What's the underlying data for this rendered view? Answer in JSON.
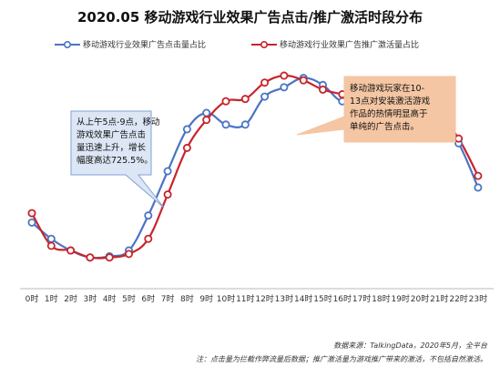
{
  "chart_data": {
    "type": "line",
    "title": "2020.05  移动游戏行业效果广告点击/推广激活时段分布",
    "categories": [
      "0时",
      "1时",
      "2时",
      "3时",
      "4时",
      "5时",
      "6时",
      "7时",
      "8时",
      "9时",
      "10时",
      "11时",
      "12时",
      "13时",
      "14时",
      "15时",
      "16时",
      "17时",
      "18时",
      "19时",
      "20时",
      "21时",
      "22时",
      "23时"
    ],
    "series": [
      {
        "name": "移动游戏行业效果广告点击量占比",
        "color": "#4a74c4",
        "values": [
          2.8,
          2.1,
          1.6,
          1.3,
          1.35,
          1.6,
          3.1,
          5.0,
          6.8,
          7.5,
          7.0,
          7.0,
          8.2,
          8.6,
          9.0,
          8.7,
          8.0,
          8.4,
          7.6,
          7.5,
          7.4,
          7.3,
          6.2,
          4.3
        ]
      },
      {
        "name": "移动游戏行业效果广告推广激活量占比",
        "color": "#c8242b",
        "values": [
          3.2,
          1.8,
          1.6,
          1.3,
          1.3,
          1.45,
          2.1,
          4.0,
          6.0,
          7.2,
          8.0,
          8.1,
          8.8,
          9.1,
          8.9,
          8.5,
          8.3,
          8.1,
          7.3,
          7.3,
          7.5,
          7.4,
          6.4,
          4.8
        ]
      }
    ],
    "ylim": [
      0,
      10
    ],
    "grid": false,
    "legend": "top",
    "annotations": [
      {
        "text": "从上午5点-9点，移动游戏效果广告点击量迅速上升，增长幅度高达725.5%。",
        "lines": [
          "从上午5点-9点，移动",
          "游戏效果广告点击",
          "量迅速上升，增长",
          "幅度高达725.5%。"
        ],
        "fill": "#dde6f5",
        "border": "#7ea0d8"
      },
      {
        "text": "移动游戏玩家在10-13点对安装激活游戏作品的热情明显高于单纯的广告点击。",
        "lines": [
          "移动游戏玩家在10-",
          "13点对安装激活游戏",
          "作品的热情明显高于",
          "单纯的广告点击。"
        ],
        "fill": "#f4c6a3",
        "border": "#f4c6a3"
      }
    ]
  },
  "footer": {
    "source": "数据来源：TalkingData，2020年5月，全平台",
    "note": "注：点击量为拦截作弊流量后数据；推广激活量为游戏推广带来的激活，不包括自然激活。"
  }
}
